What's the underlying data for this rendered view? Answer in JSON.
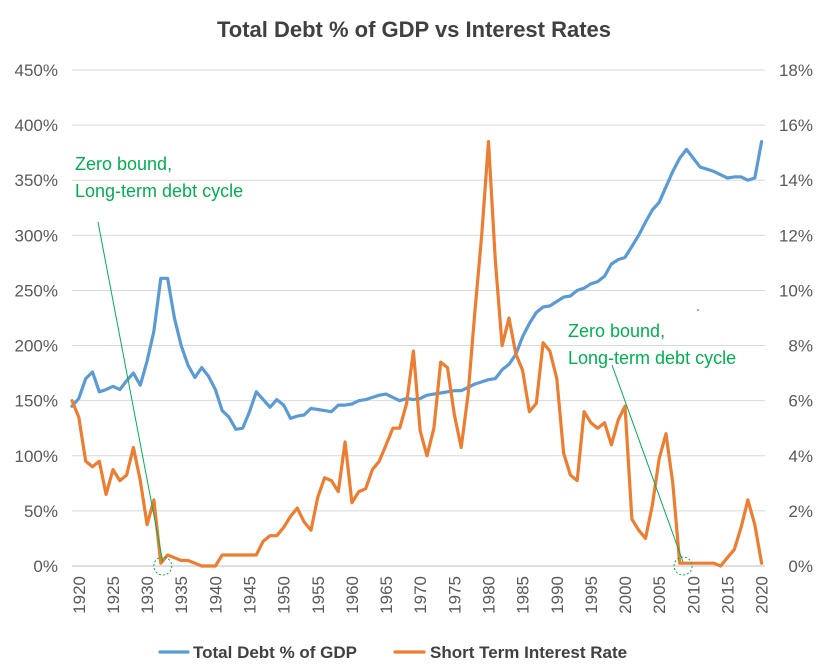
{
  "chart_data": {
    "type": "line",
    "title": "Total Debt % of GDP vs Interest Rates",
    "x_ticks": [
      "1920",
      "1925",
      "1930",
      "1935",
      "1940",
      "1945",
      "1950",
      "1955",
      "1960",
      "1965",
      "1970",
      "1975",
      "1980",
      "1985",
      "1990",
      "1995",
      "2000",
      "2005",
      "2010",
      "2015",
      "2020"
    ],
    "y_left_ticks": [
      "0%",
      "50%",
      "100%",
      "150%",
      "200%",
      "250%",
      "300%",
      "350%",
      "400%",
      "450%"
    ],
    "y_right_ticks": [
      "0%",
      "2%",
      "4%",
      "6%",
      "8%",
      "10%",
      "12%",
      "14%",
      "16%",
      "18%"
    ],
    "y_left_lim": [
      0,
      450
    ],
    "y_right_lim": [
      0,
      18
    ],
    "x_lim": [
      1919,
      2020.5
    ],
    "grid": "horizontal",
    "legend_position": "bottom",
    "series": [
      {
        "name": "Total Debt % of GDP",
        "axis": "left",
        "color": "#5B9BD5",
        "points": [
          [
            1919,
            145
          ],
          [
            1920,
            152
          ],
          [
            1921,
            170
          ],
          [
            1922,
            176
          ],
          [
            1923,
            158
          ],
          [
            1924,
            160
          ],
          [
            1925,
            163
          ],
          [
            1926,
            160
          ],
          [
            1927,
            168
          ],
          [
            1928,
            175
          ],
          [
            1929,
            164
          ],
          [
            1930,
            186
          ],
          [
            1931,
            213
          ],
          [
            1932,
            261
          ],
          [
            1933,
            261
          ],
          [
            1934,
            225
          ],
          [
            1935,
            200
          ],
          [
            1936,
            182
          ],
          [
            1937,
            171
          ],
          [
            1938,
            180
          ],
          [
            1939,
            172
          ],
          [
            1940,
            160
          ],
          [
            1941,
            141
          ],
          [
            1942,
            135
          ],
          [
            1943,
            124
          ],
          [
            1944,
            125
          ],
          [
            1945,
            140
          ],
          [
            1946,
            158
          ],
          [
            1947,
            151
          ],
          [
            1948,
            144
          ],
          [
            1949,
            151
          ],
          [
            1950,
            146
          ],
          [
            1951,
            134
          ],
          [
            1952,
            136
          ],
          [
            1953,
            137
          ],
          [
            1954,
            143
          ],
          [
            1955,
            142
          ],
          [
            1956,
            141
          ],
          [
            1957,
            140
          ],
          [
            1958,
            146
          ],
          [
            1959,
            146
          ],
          [
            1960,
            147
          ],
          [
            1961,
            150
          ],
          [
            1962,
            151
          ],
          [
            1963,
            153
          ],
          [
            1964,
            155
          ],
          [
            1965,
            156
          ],
          [
            1966,
            153
          ],
          [
            1967,
            150
          ],
          [
            1968,
            152
          ],
          [
            1969,
            151
          ],
          [
            1970,
            152
          ],
          [
            1971,
            155
          ],
          [
            1972,
            156
          ],
          [
            1973,
            157
          ],
          [
            1974,
            158
          ],
          [
            1975,
            159
          ],
          [
            1976,
            159
          ],
          [
            1977,
            162
          ],
          [
            1978,
            165
          ],
          [
            1979,
            167
          ],
          [
            1980,
            169
          ],
          [
            1981,
            170
          ],
          [
            1982,
            178
          ],
          [
            1983,
            183
          ],
          [
            1984,
            192
          ],
          [
            1985,
            208
          ],
          [
            1986,
            220
          ],
          [
            1987,
            230
          ],
          [
            1988,
            235
          ],
          [
            1989,
            236
          ],
          [
            1990,
            240
          ],
          [
            1991,
            244
          ],
          [
            1992,
            245
          ],
          [
            1993,
            250
          ],
          [
            1994,
            252
          ],
          [
            1995,
            256
          ],
          [
            1996,
            258
          ],
          [
            1997,
            263
          ],
          [
            1998,
            274
          ],
          [
            1999,
            278
          ],
          [
            2000,
            280
          ],
          [
            2001,
            290
          ],
          [
            2002,
            300
          ],
          [
            2003,
            312
          ],
          [
            2004,
            323
          ],
          [
            2005,
            330
          ],
          [
            2006,
            344
          ],
          [
            2007,
            358
          ],
          [
            2008,
            370
          ],
          [
            2009,
            378
          ],
          [
            2010,
            370
          ],
          [
            2011,
            362
          ],
          [
            2012,
            360
          ],
          [
            2013,
            358
          ],
          [
            2014,
            355
          ],
          [
            2015,
            352
          ],
          [
            2016,
            353
          ],
          [
            2017,
            353
          ],
          [
            2018,
            350
          ],
          [
            2019,
            352
          ],
          [
            2020,
            385
          ]
        ]
      },
      {
        "name": "Short Term Interest Rate",
        "axis": "right",
        "color": "#ED7D31",
        "points": [
          [
            1919,
            6.0
          ],
          [
            1920,
            5.4
          ],
          [
            1921,
            3.8
          ],
          [
            1922,
            3.6
          ],
          [
            1923,
            3.8
          ],
          [
            1924,
            2.6
          ],
          [
            1925,
            3.5
          ],
          [
            1926,
            3.1
          ],
          [
            1927,
            3.3
          ],
          [
            1928,
            4.3
          ],
          [
            1929,
            3.1
          ],
          [
            1930,
            1.5
          ],
          [
            1931,
            2.4
          ],
          [
            1932,
            0.1
          ],
          [
            1933,
            0.4
          ],
          [
            1934,
            0.3
          ],
          [
            1935,
            0.2
          ],
          [
            1936,
            0.2
          ],
          [
            1937,
            0.1
          ],
          [
            1938,
            0.0
          ],
          [
            1939,
            0.0
          ],
          [
            1940,
            0.0
          ],
          [
            1941,
            0.4
          ],
          [
            1942,
            0.4
          ],
          [
            1943,
            0.4
          ],
          [
            1944,
            0.4
          ],
          [
            1945,
            0.4
          ],
          [
            1946,
            0.4
          ],
          [
            1947,
            0.9
          ],
          [
            1948,
            1.1
          ],
          [
            1949,
            1.1
          ],
          [
            1950,
            1.4
          ],
          [
            1951,
            1.8
          ],
          [
            1952,
            2.1
          ],
          [
            1953,
            1.6
          ],
          [
            1954,
            1.3
          ],
          [
            1955,
            2.5
          ],
          [
            1956,
            3.2
          ],
          [
            1957,
            3.1
          ],
          [
            1958,
            2.7
          ],
          [
            1959,
            4.5
          ],
          [
            1960,
            2.3
          ],
          [
            1961,
            2.7
          ],
          [
            1962,
            2.8
          ],
          [
            1963,
            3.5
          ],
          [
            1964,
            3.8
          ],
          [
            1965,
            4.4
          ],
          [
            1966,
            5.0
          ],
          [
            1967,
            5.0
          ],
          [
            1968,
            5.9
          ],
          [
            1969,
            7.8
          ],
          [
            1970,
            4.9
          ],
          [
            1971,
            4.0
          ],
          [
            1972,
            5.0
          ],
          [
            1973,
            7.4
          ],
          [
            1974,
            7.2
          ],
          [
            1975,
            5.5
          ],
          [
            1976,
            4.3
          ],
          [
            1977,
            6.2
          ],
          [
            1978,
            9.2
          ],
          [
            1979,
            12.0
          ],
          [
            1980,
            15.4
          ],
          [
            1981,
            11.1
          ],
          [
            1982,
            8.0
          ],
          [
            1983,
            9.0
          ],
          [
            1984,
            7.7
          ],
          [
            1985,
            7.1
          ],
          [
            1986,
            5.6
          ],
          [
            1987,
            5.9
          ],
          [
            1988,
            8.1
          ],
          [
            1989,
            7.8
          ],
          [
            1990,
            6.8
          ],
          [
            1991,
            4.1
          ],
          [
            1992,
            3.3
          ],
          [
            1993,
            3.1
          ],
          [
            1994,
            5.6
          ],
          [
            1995,
            5.2
          ],
          [
            1996,
            5.0
          ],
          [
            1997,
            5.2
          ],
          [
            1998,
            4.4
          ],
          [
            1999,
            5.3
          ],
          [
            2000,
            5.8
          ],
          [
            2001,
            1.7
          ],
          [
            2002,
            1.3
          ],
          [
            2003,
            1.0
          ],
          [
            2004,
            2.2
          ],
          [
            2005,
            3.9
          ],
          [
            2006,
            4.8
          ],
          [
            2007,
            3.0
          ],
          [
            2008,
            0.1
          ],
          [
            2009,
            0.1
          ],
          [
            2010,
            0.1
          ],
          [
            2011,
            0.1
          ],
          [
            2012,
            0.1
          ],
          [
            2013,
            0.1
          ],
          [
            2014,
            0.0
          ],
          [
            2015,
            0.3
          ],
          [
            2016,
            0.6
          ],
          [
            2017,
            1.4
          ],
          [
            2018,
            2.4
          ],
          [
            2019,
            1.5
          ],
          [
            2020,
            0.1
          ]
        ]
      }
    ],
    "annotations": [
      {
        "lines": [
          "Zero bound,",
          "Long-term debt cycle"
        ],
        "color": "#00B050",
        "arrow_to_x": 1932.3,
        "arrow_to_y_pct": 0
      },
      {
        "lines": [
          "Zero bound,",
          "Long-term debt cycle"
        ],
        "color": "#00B050",
        "arrow_to_x": 2008.5,
        "arrow_to_y_pct": 0
      }
    ]
  }
}
